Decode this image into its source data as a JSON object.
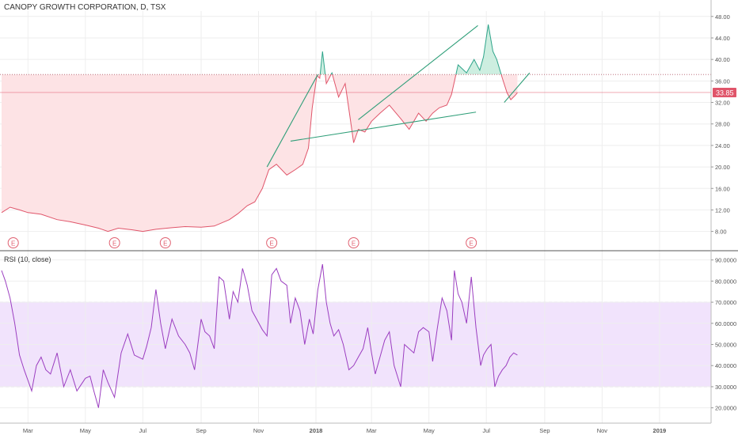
{
  "header": {
    "title": "CANOPY GROWTH CORPORATION, D, TSX"
  },
  "rsi_panel": {
    "title": "RSI (10, close)"
  },
  "colors": {
    "price_up": "#2ea48a",
    "price_down": "#e0556a",
    "price_fill_up": "#cdeee0",
    "price_fill_down": "#fde3e5",
    "trendline": "#2e9e78",
    "rsi_line": "#9b3ec0",
    "rsi_band": "#ecd9fb",
    "last_price": "#e0556a"
  },
  "chart_data": [
    {
      "type": "line",
      "title": "CANOPY GROWTH CORPORATION, D, TSX",
      "x_ticks": [
        "Mar",
        "May",
        "Jul",
        "Sep",
        "Nov",
        "2018",
        "Mar",
        "May",
        "Jul",
        "Sep",
        "Nov",
        "2019"
      ],
      "y_ticks": [
        "8.00",
        "12.00",
        "16.00",
        "20.00",
        "24.00",
        "28.00",
        "32.00",
        "36.00",
        "40.00",
        "44.00",
        "48.00"
      ],
      "ylim": [
        5,
        49
      ],
      "baseline": 37.2,
      "last_price": {
        "value": 33.85,
        "label": "33.85"
      },
      "earnings_markers": {
        "label": "E",
        "x": [
          "Feb 10",
          "Jun 01",
          "Jul 25",
          "Nov 15",
          "Feb 10",
          "Jun 15"
        ]
      },
      "series": [
        {
          "x": [
            "Feb 1",
            "Feb 10",
            "Feb 20",
            "Mar 1",
            "Mar 15",
            "Apr 1",
            "Apr 15",
            "May 1",
            "May 15",
            "May 25",
            "Jun 5",
            "Jun 20",
            "Jul 1",
            "Jul 15",
            "Aug 1",
            "Aug 15",
            "Sep 1",
            "Sep 15",
            "Oct 1",
            "Oct 10",
            "Oct 20",
            "Oct 28",
            "Nov 5",
            "Nov 12",
            "Nov 20",
            "Dec 1",
            "Dec 10",
            "Dec 18",
            "Dec 24",
            "Dec 28",
            "Jan 2",
            "Jan 5",
            "Jan 8",
            "Jan 12",
            "Jan 18",
            "Jan 25",
            "Feb 1",
            "Feb 6",
            "Feb 10",
            "Feb 15",
            "Feb 22",
            "Mar 1",
            "Mar 10",
            "Mar 20",
            "Apr 1",
            "Apr 10",
            "Apr 20",
            "Apr 28",
            "May 5",
            "May 12",
            "May 20",
            "May 25",
            "Jun 1",
            "Jun 10",
            "Jun 18",
            "Jun 24",
            "Jun 28",
            "Jul 3",
            "Jul 8",
            "Jul 12",
            "Jul 18",
            "Jul 23",
            "Jul 27",
            "Jul 31",
            "Aug 3"
          ],
          "values": [
            11.5,
            12.5,
            12.0,
            11.5,
            11.2,
            10.2,
            9.8,
            9.2,
            8.6,
            8.0,
            8.6,
            8.3,
            8.0,
            8.4,
            8.7,
            8.9,
            8.8,
            9.0,
            10.2,
            11.3,
            12.8,
            13.5,
            16.0,
            19.5,
            20.5,
            18.5,
            19.5,
            20.5,
            23.5,
            31.0,
            37.0,
            36.5,
            41.5,
            35.5,
            37.5,
            33.0,
            35.5,
            29.5,
            24.5,
            27.0,
            26.5,
            28.5,
            30.0,
            31.5,
            29.0,
            27.0,
            30.0,
            28.5,
            30.0,
            31.0,
            31.5,
            33.5,
            39.0,
            37.5,
            40.0,
            38.0,
            40.5,
            46.5,
            41.5,
            40.0,
            36.5,
            33.8,
            32.5,
            33.2,
            33.8
          ]
        }
      ],
      "trendlines": [
        {
          "from": [
            "Nov 10",
            20.0
          ],
          "to": [
            "Jan 3",
            37.2
          ]
        },
        {
          "from": [
            "Dec 5",
            24.8
          ],
          "to": [
            "Jun 20",
            30.2
          ]
        },
        {
          "from": [
            "Feb 15",
            28.8
          ],
          "to": [
            "Jun 22",
            46.3
          ]
        },
        {
          "from": [
            "Jul 20",
            32.0
          ],
          "to": [
            "Aug 16",
            37.5
          ]
        }
      ]
    },
    {
      "type": "line",
      "title": "RSI (10, close)",
      "y_ticks": [
        "20.0000",
        "30.0000",
        "40.0000",
        "50.0000",
        "60.0000",
        "70.0000",
        "80.0000",
        "90.0000"
      ],
      "ylim": [
        15,
        94
      ],
      "band": [
        30,
        70
      ],
      "series": [
        {
          "x": [
            "Feb 1",
            "Feb 5",
            "Feb 10",
            "Feb 15",
            "Feb 20",
            "Feb 25",
            "Mar 1",
            "Mar 5",
            "Mar 10",
            "Mar 15",
            "Mar 20",
            "Mar 25",
            "Apr 1",
            "Apr 8",
            "Apr 15",
            "Apr 22",
            "May 1",
            "May 6",
            "May 10",
            "May 15",
            "May 20",
            "May 25",
            "Jun 1",
            "Jun 8",
            "Jun 15",
            "Jun 22",
            "Jul 1",
            "Jul 5",
            "Jul 10",
            "Jul 15",
            "Jul 20",
            "Jul 25",
            "Aug 1",
            "Aug 8",
            "Aug 15",
            "Aug 20",
            "Aug 25",
            "Sep 1",
            "Sep 5",
            "Sep 10",
            "Sep 15",
            "Sep 20",
            "Sep 25",
            "Oct 1",
            "Oct 5",
            "Oct 10",
            "Oct 15",
            "Oct 20",
            "Oct 25",
            "Oct 30",
            "Nov 5",
            "Nov 10",
            "Nov 15",
            "Nov 20",
            "Nov 25",
            "Dec 1",
            "Dec 5",
            "Dec 10",
            "Dec 15",
            "Dec 20",
            "Dec 25",
            "Dec 29",
            "Jan 3",
            "Jan 8",
            "Jan 12",
            "Jan 16",
            "Jan 20",
            "Jan 25",
            "Jan 30",
            "Feb 5",
            "Feb 10",
            "Feb 15",
            "Feb 20",
            "Feb 25",
            "Mar 1",
            "Mar 5",
            "Mar 10",
            "Mar 15",
            "Mar 20",
            "Mar 25",
            "Apr 1",
            "Apr 5",
            "Apr 10",
            "Apr 15",
            "Apr 20",
            "Apr 25",
            "May 1",
            "May 5",
            "May 10",
            "May 15",
            "May 20",
            "May 25",
            "May 28",
            "Jun 1",
            "Jun 5",
            "Jun 10",
            "Jun 15",
            "Jun 20",
            "Jun 25",
            "Jun 28",
            "Jul 2",
            "Jul 6",
            "Jul 10",
            "Jul 14",
            "Jul 18",
            "Jul 22",
            "Jul 26",
            "Jul 30",
            "Aug 3"
          ],
          "values": [
            85,
            80,
            72,
            60,
            45,
            38,
            33,
            28,
            40,
            44,
            38,
            36,
            46,
            30,
            38,
            28,
            34,
            35,
            28,
            20,
            38,
            32,
            25,
            46,
            55,
            45,
            43,
            49,
            58,
            76,
            60,
            48,
            62,
            54,
            50,
            46,
            38,
            62,
            56,
            54,
            48,
            82,
            80,
            62,
            75,
            70,
            86,
            78,
            66,
            62,
            57,
            54,
            83,
            86,
            80,
            78,
            60,
            72,
            66,
            50,
            62,
            55,
            76,
            88,
            70,
            60,
            54,
            57,
            50,
            38,
            40,
            44,
            48,
            58,
            46,
            36,
            44,
            52,
            56,
            40,
            30,
            50,
            48,
            46,
            56,
            58,
            56,
            42,
            58,
            72,
            66,
            52,
            85,
            74,
            70,
            60,
            82,
            58,
            40,
            45,
            48,
            50,
            30,
            35,
            38,
            40,
            44,
            46,
            45
          ]
        }
      ]
    }
  ]
}
